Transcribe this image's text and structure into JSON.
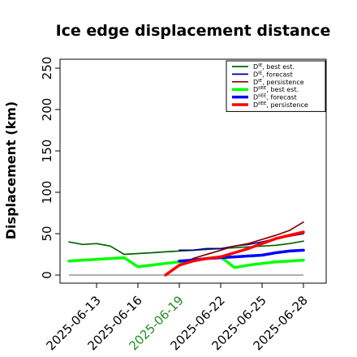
{
  "chart_data": {
    "type": "line",
    "title": "Ice edge displacement distance",
    "ylabel": "Displacement (km)",
    "xlabel": "",
    "ylim": [
      0,
      260
    ],
    "yticks": [
      0,
      50,
      100,
      150,
      200,
      250
    ],
    "xticks": [
      "2025-06-13",
      "2025-06-16",
      "2025-06-19",
      "2025-06-22",
      "2025-06-25",
      "2025-06-28"
    ],
    "highlight_xtick": "2025-06-19",
    "highlight_color": "#228B22",
    "legend_position": "top-right",
    "baseline": {
      "x": [
        "2025-06-11",
        "2025-06-28"
      ],
      "y": [
        0,
        0
      ],
      "color": "#808080"
    },
    "series": [
      {
        "label_main": "D",
        "label_sup": "IE",
        "label_rest": ", best est.",
        "color": "#006400",
        "width": 1.7,
        "x": [
          "2025-06-11",
          "2025-06-12",
          "2025-06-13",
          "2025-06-14",
          "2025-06-15",
          "2025-06-16",
          "2025-06-17",
          "2025-06-18",
          "2025-06-19",
          "2025-06-20",
          "2025-06-21",
          "2025-06-22",
          "2025-06-23",
          "2025-06-24",
          "2025-06-25",
          "2025-06-26",
          "2025-06-27",
          "2025-06-28"
        ],
        "y": [
          40,
          37,
          38,
          35,
          25,
          26,
          27,
          28,
          29,
          30,
          31,
          32,
          33,
          34,
          35,
          36,
          38,
          41
        ]
      },
      {
        "label_main": "D",
        "label_sup": "IE",
        "label_rest": ", forecast",
        "color": "#00008B",
        "width": 1.7,
        "x": [
          "2025-06-19",
          "2025-06-20",
          "2025-06-21",
          "2025-06-22",
          "2025-06-23",
          "2025-06-24",
          "2025-06-25",
          "2025-06-26",
          "2025-06-27",
          "2025-06-28"
        ],
        "y": [
          30,
          30,
          32,
          32,
          35,
          37,
          40,
          44,
          47,
          50
        ]
      },
      {
        "label_main": "D",
        "label_sup": "IE",
        "label_rest": ", persistence",
        "color": "#8B0000",
        "width": 1.7,
        "x": [
          "2025-06-19",
          "2025-06-20",
          "2025-06-21",
          "2025-06-22",
          "2025-06-23",
          "2025-06-24",
          "2025-06-25",
          "2025-06-26",
          "2025-06-27",
          "2025-06-28"
        ],
        "y": [
          12,
          20,
          25,
          30,
          35,
          38,
          43,
          48,
          54,
          64
        ]
      },
      {
        "label_main": "D",
        "label_sup": "IIEE",
        "label_rest": ", best est.",
        "color": "#00FF00",
        "width": 3.5,
        "x": [
          "2025-06-11",
          "2025-06-12",
          "2025-06-13",
          "2025-06-14",
          "2025-06-15",
          "2025-06-16",
          "2025-06-17",
          "2025-06-18",
          "2025-06-19",
          "2025-06-20",
          "2025-06-21",
          "2025-06-22",
          "2025-06-23",
          "2025-06-24",
          "2025-06-25",
          "2025-06-26",
          "2025-06-27",
          "2025-06-28"
        ],
        "y": [
          17,
          18,
          19,
          20,
          21,
          10,
          12,
          14,
          16,
          18,
          20,
          22,
          9,
          12,
          14,
          16,
          17,
          18
        ]
      },
      {
        "label_main": "D",
        "label_sup": "IIEE",
        "label_rest": ", forecast",
        "color": "#0000FF",
        "width": 3.5,
        "x": [
          "2025-06-19",
          "2025-06-20",
          "2025-06-21",
          "2025-06-22",
          "2025-06-23",
          "2025-06-24",
          "2025-06-25",
          "2025-06-26",
          "2025-06-27",
          "2025-06-28"
        ],
        "y": [
          17,
          18,
          20,
          21,
          22,
          23,
          24,
          27,
          29,
          30
        ]
      },
      {
        "label_main": "D",
        "label_sup": "IIEE",
        "label_rest": ", persistence",
        "color": "#FF0000",
        "width": 3.5,
        "x": [
          "2025-06-18",
          "2025-06-19",
          "2025-06-20",
          "2025-06-21",
          "2025-06-22",
          "2025-06-23",
          "2025-06-24",
          "2025-06-25",
          "2025-06-26",
          "2025-06-27",
          "2025-06-28"
        ],
        "y": [
          0,
          12,
          17,
          20,
          22,
          27,
          32,
          38,
          44,
          48,
          52
        ]
      }
    ]
  }
}
